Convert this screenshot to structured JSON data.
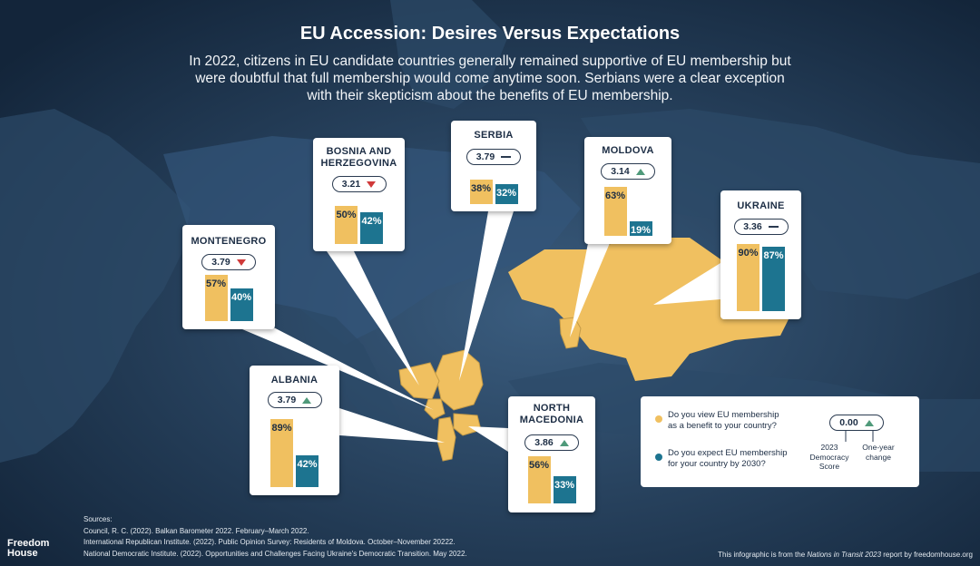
{
  "title": "EU Accession: Desires Versus Expectations",
  "subtitle": "In 2022, citizens in EU candidate countries generally remained supportive of EU membership but were doubtful that full membership would come anytime soon. Serbians were a clear exception with their skepticism about the benefits of EU membership.",
  "colors": {
    "benefit": "#f0c060",
    "expect": "#1d7490",
    "down": "#d03a3a",
    "up": "#4f9a7a"
  },
  "chart_data": {
    "type": "bar",
    "categories": [
      "Montenegro",
      "Bosnia and Herzegovina",
      "Serbia",
      "Moldova",
      "Ukraine",
      "Albania",
      "North Macedonia"
    ],
    "series": [
      {
        "name": "Do you view EU membership as a benefit to your country?",
        "values": [
          57,
          50,
          38,
          63,
          90,
          89,
          56
        ]
      },
      {
        "name": "Do you expect EU membership for your country by 2030?",
        "values": [
          40,
          42,
          32,
          19,
          87,
          42,
          33
        ]
      }
    ],
    "ylim": [
      0,
      100
    ],
    "legend_position": "bottom-right"
  },
  "countries": [
    {
      "name": "MONTENEGRO",
      "score": "3.79",
      "change": "down",
      "benefit": 57,
      "expect": 40,
      "benefit_label": "57%",
      "expect_label": "40%"
    },
    {
      "name": "BOSNIA AND\nHERZEGOVINA",
      "score": "3.21",
      "change": "down",
      "benefit": 50,
      "expect": 42,
      "benefit_label": "50%",
      "expect_label": "42%"
    },
    {
      "name": "SERBIA",
      "score": "3.79",
      "change": "same",
      "benefit": 38,
      "expect": 32,
      "benefit_label": "38%",
      "expect_label": "32%"
    },
    {
      "name": "MOLDOVA",
      "score": "3.14",
      "change": "up",
      "benefit": 63,
      "expect": 19,
      "benefit_label": "63%",
      "expect_label": "19%"
    },
    {
      "name": "UKRAINE",
      "score": "3.36",
      "change": "same",
      "benefit": 90,
      "expect": 87,
      "benefit_label": "90%",
      "expect_label": "87%"
    },
    {
      "name": "ALBANIA",
      "score": "3.79",
      "change": "up",
      "benefit": 89,
      "expect": 42,
      "benefit_label": "89%",
      "expect_label": "42%"
    },
    {
      "name": "NORTH\nMACEDONIA",
      "score": "3.86",
      "change": "up",
      "benefit": 56,
      "expect": 33,
      "benefit_label": "56%",
      "expect_label": "33%"
    }
  ],
  "legend": {
    "benefit_text": "Do you view EU membership\nas a benefit to your country?",
    "expect_text": "Do you expect EU membership\nfor your country by 2030?",
    "example_score": "0.00",
    "score_caption": "2023\nDemocracy\nScore",
    "change_caption": "One-year\nchange"
  },
  "sources": {
    "heading": "Sources:",
    "lines": [
      "Council, R. C. (2022). Balkan Barometer 2022. February–March 2022.",
      "International Republican Institute. (2022). Public Opinion Survey: Residents of Moldova. October–November 20222.",
      "National Democratic Institute. (2022). Opportunities and Challenges Facing Ukraine's Democratic Transition. May 2022."
    ]
  },
  "footer": {
    "prefix": "This infographic is from the ",
    "report": "Nations in Transit 2023",
    "suffix": " report by freedomhouse.org"
  },
  "logo": {
    "line1": "Freedom",
    "line2": "House"
  }
}
